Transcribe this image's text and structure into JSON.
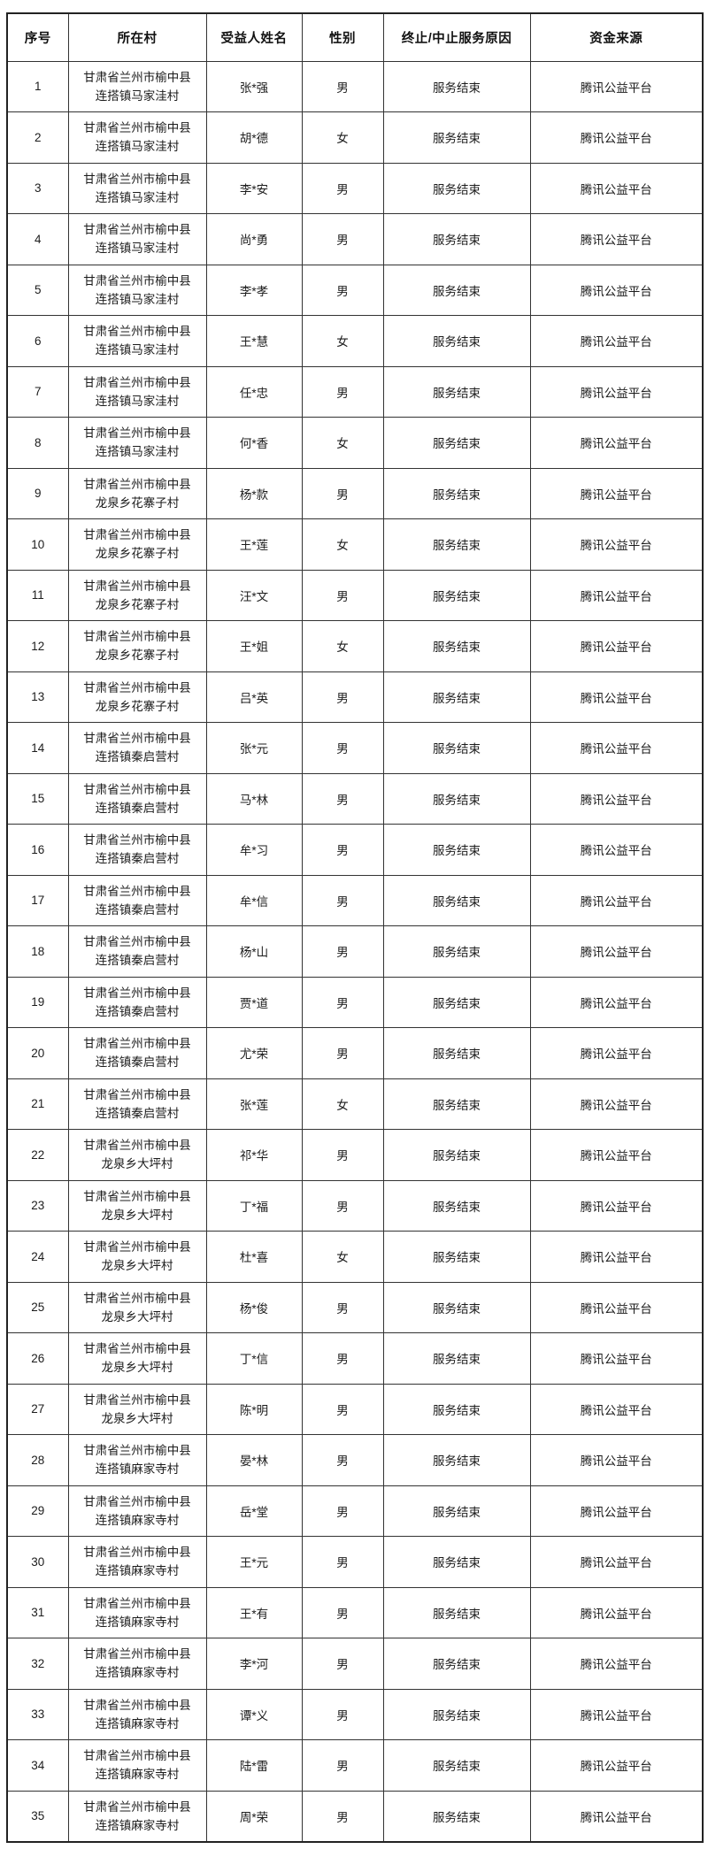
{
  "table": {
    "headers": {
      "serial": "序号",
      "village": "所在村",
      "name": "受益人姓名",
      "gender": "性别",
      "reason": "终止/中止服务原因",
      "source": "资金来源"
    },
    "rows": [
      {
        "no": "1",
        "village1": "甘肃省兰州市榆中县",
        "village2": "连搭镇马家洼村",
        "name": "张*强",
        "gender": "男",
        "reason": "服务结束",
        "source": "腾讯公益平台"
      },
      {
        "no": "2",
        "village1": "甘肃省兰州市榆中县",
        "village2": "连搭镇马家洼村",
        "name": "胡*德",
        "gender": "女",
        "reason": "服务结束",
        "source": "腾讯公益平台"
      },
      {
        "no": "3",
        "village1": "甘肃省兰州市榆中县",
        "village2": "连搭镇马家洼村",
        "name": "李*安",
        "gender": "男",
        "reason": "服务结束",
        "source": "腾讯公益平台"
      },
      {
        "no": "4",
        "village1": "甘肃省兰州市榆中县",
        "village2": "连搭镇马家洼村",
        "name": "尚*勇",
        "gender": "男",
        "reason": "服务结束",
        "source": "腾讯公益平台"
      },
      {
        "no": "5",
        "village1": "甘肃省兰州市榆中县",
        "village2": "连搭镇马家洼村",
        "name": "李*孝",
        "gender": "男",
        "reason": "服务结束",
        "source": "腾讯公益平台"
      },
      {
        "no": "6",
        "village1": "甘肃省兰州市榆中县",
        "village2": "连搭镇马家洼村",
        "name": "王*慧",
        "gender": "女",
        "reason": "服务结束",
        "source": "腾讯公益平台"
      },
      {
        "no": "7",
        "village1": "甘肃省兰州市榆中县",
        "village2": "连搭镇马家洼村",
        "name": "任*忠",
        "gender": "男",
        "reason": "服务结束",
        "source": "腾讯公益平台"
      },
      {
        "no": "8",
        "village1": "甘肃省兰州市榆中县",
        "village2": "连搭镇马家洼村",
        "name": "何*香",
        "gender": "女",
        "reason": "服务结束",
        "source": "腾讯公益平台"
      },
      {
        "no": "9",
        "village1": "甘肃省兰州市榆中县",
        "village2": "龙泉乡花寨子村",
        "name": "杨*款",
        "gender": "男",
        "reason": "服务结束",
        "source": "腾讯公益平台"
      },
      {
        "no": "10",
        "village1": "甘肃省兰州市榆中县",
        "village2": "龙泉乡花寨子村",
        "name": "王*莲",
        "gender": "女",
        "reason": "服务结束",
        "source": "腾讯公益平台"
      },
      {
        "no": "11",
        "village1": "甘肃省兰州市榆中县",
        "village2": "龙泉乡花寨子村",
        "name": "汪*文",
        "gender": "男",
        "reason": "服务结束",
        "source": "腾讯公益平台"
      },
      {
        "no": "12",
        "village1": "甘肃省兰州市榆中县",
        "village2": "龙泉乡花寨子村",
        "name": "王*姐",
        "gender": "女",
        "reason": "服务结束",
        "source": "腾讯公益平台"
      },
      {
        "no": "13",
        "village1": "甘肃省兰州市榆中县",
        "village2": "龙泉乡花寨子村",
        "name": "吕*英",
        "gender": "男",
        "reason": "服务结束",
        "source": "腾讯公益平台"
      },
      {
        "no": "14",
        "village1": "甘肃省兰州市榆中县",
        "village2": "连搭镇秦启营村",
        "name": "张*元",
        "gender": "男",
        "reason": "服务结束",
        "source": "腾讯公益平台"
      },
      {
        "no": "15",
        "village1": "甘肃省兰州市榆中县",
        "village2": "连搭镇秦启营村",
        "name": "马*林",
        "gender": "男",
        "reason": "服务结束",
        "source": "腾讯公益平台"
      },
      {
        "no": "16",
        "village1": "甘肃省兰州市榆中县",
        "village2": "连搭镇秦启营村",
        "name": "牟*习",
        "gender": "男",
        "reason": "服务结束",
        "source": "腾讯公益平台"
      },
      {
        "no": "17",
        "village1": "甘肃省兰州市榆中县",
        "village2": "连搭镇秦启营村",
        "name": "牟*信",
        "gender": "男",
        "reason": "服务结束",
        "source": "腾讯公益平台"
      },
      {
        "no": "18",
        "village1": "甘肃省兰州市榆中县",
        "village2": "连搭镇秦启营村",
        "name": "杨*山",
        "gender": "男",
        "reason": "服务结束",
        "source": "腾讯公益平台"
      },
      {
        "no": "19",
        "village1": "甘肃省兰州市榆中县",
        "village2": "连搭镇秦启营村",
        "name": "贾*道",
        "gender": "男",
        "reason": "服务结束",
        "source": "腾讯公益平台"
      },
      {
        "no": "20",
        "village1": "甘肃省兰州市榆中县",
        "village2": "连搭镇秦启营村",
        "name": "尤*荣",
        "gender": "男",
        "reason": "服务结束",
        "source": "腾讯公益平台"
      },
      {
        "no": "21",
        "village1": "甘肃省兰州市榆中县",
        "village2": "连搭镇秦启营村",
        "name": "张*莲",
        "gender": "女",
        "reason": "服务结束",
        "source": "腾讯公益平台"
      },
      {
        "no": "22",
        "village1": "甘肃省兰州市榆中县",
        "village2": "龙泉乡大坪村",
        "name": "祁*华",
        "gender": "男",
        "reason": "服务结束",
        "source": "腾讯公益平台"
      },
      {
        "no": "23",
        "village1": "甘肃省兰州市榆中县",
        "village2": "龙泉乡大坪村",
        "name": "丁*福",
        "gender": "男",
        "reason": "服务结束",
        "source": "腾讯公益平台"
      },
      {
        "no": "24",
        "village1": "甘肃省兰州市榆中县",
        "village2": "龙泉乡大坪村",
        "name": "杜*喜",
        "gender": "女",
        "reason": "服务结束",
        "source": "腾讯公益平台"
      },
      {
        "no": "25",
        "village1": "甘肃省兰州市榆中县",
        "village2": "龙泉乡大坪村",
        "name": "杨*俊",
        "gender": "男",
        "reason": "服务结束",
        "source": "腾讯公益平台"
      },
      {
        "no": "26",
        "village1": "甘肃省兰州市榆中县",
        "village2": "龙泉乡大坪村",
        "name": "丁*信",
        "gender": "男",
        "reason": "服务结束",
        "source": "腾讯公益平台"
      },
      {
        "no": "27",
        "village1": "甘肃省兰州市榆中县",
        "village2": "龙泉乡大坪村",
        "name": "陈*明",
        "gender": "男",
        "reason": "服务结束",
        "source": "腾讯公益平台"
      },
      {
        "no": "28",
        "village1": "甘肃省兰州市榆中县",
        "village2": "连搭镇麻家寺村",
        "name": "晏*林",
        "gender": "男",
        "reason": "服务结束",
        "source": "腾讯公益平台"
      },
      {
        "no": "29",
        "village1": "甘肃省兰州市榆中县",
        "village2": "连搭镇麻家寺村",
        "name": "岳*堂",
        "gender": "男",
        "reason": "服务结束",
        "source": "腾讯公益平台"
      },
      {
        "no": "30",
        "village1": "甘肃省兰州市榆中县",
        "village2": "连搭镇麻家寺村",
        "name": "王*元",
        "gender": "男",
        "reason": "服务结束",
        "source": "腾讯公益平台"
      },
      {
        "no": "31",
        "village1": "甘肃省兰州市榆中县",
        "village2": "连搭镇麻家寺村",
        "name": "王*有",
        "gender": "男",
        "reason": "服务结束",
        "source": "腾讯公益平台"
      },
      {
        "no": "32",
        "village1": "甘肃省兰州市榆中县",
        "village2": "连搭镇麻家寺村",
        "name": "李*河",
        "gender": "男",
        "reason": "服务结束",
        "source": "腾讯公益平台"
      },
      {
        "no": "33",
        "village1": "甘肃省兰州市榆中县",
        "village2": "连搭镇麻家寺村",
        "name": "谭*义",
        "gender": "男",
        "reason": "服务结束",
        "source": "腾讯公益平台"
      },
      {
        "no": "34",
        "village1": "甘肃省兰州市榆中县",
        "village2": "连搭镇麻家寺村",
        "name": "陆*雷",
        "gender": "男",
        "reason": "服务结束",
        "source": "腾讯公益平台"
      },
      {
        "no": "35",
        "village1": "甘肃省兰州市榆中县",
        "village2": "连搭镇麻家寺村",
        "name": "周*荣",
        "gender": "男",
        "reason": "服务结束",
        "source": "腾讯公益平台"
      }
    ]
  },
  "colors": {
    "border_inner": "#333333",
    "border_outer": "#222222",
    "text": "#1c1c1c",
    "background": "#ffffff"
  }
}
